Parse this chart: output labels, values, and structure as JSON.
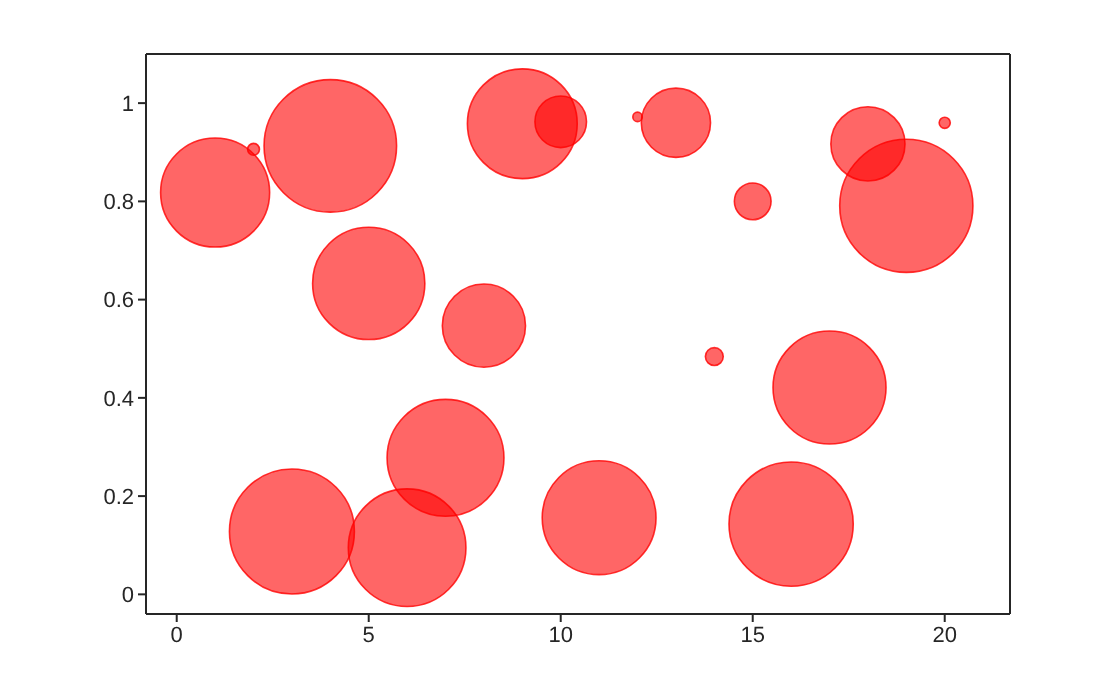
{
  "chart_data": {
    "type": "bubble",
    "x": [
      1,
      2,
      3,
      4,
      5,
      6,
      7,
      8,
      9,
      10,
      11,
      12,
      13,
      14,
      15,
      16,
      17,
      18,
      19,
      20
    ],
    "series": [
      {
        "color": "#ff0000",
        "values": [
          0.818,
          0.906,
          0.128,
          0.913,
          0.633,
          0.095,
          0.278,
          0.547,
          0.958,
          0.962,
          0.156,
          0.972,
          0.96,
          0.484,
          0.8,
          0.143,
          0.421,
          0.917,
          0.791,
          0.96
        ],
        "sizes": [
          0.67,
          0.008,
          0.88,
          0.99,
          0.71,
          0.78,
          0.77,
          0.39,
          0.68,
          0.15,
          0.73,
          0.005,
          0.27,
          0.018,
          0.076,
          0.87,
          0.72,
          0.31,
          1,
          0.007
        ]
      }
    ],
    "xlim": [
      -0.8,
      21.7
    ],
    "ylim": [
      -0.04,
      1.1
    ],
    "xticks": [
      0,
      5,
      10,
      15,
      20
    ],
    "yticks": [
      0,
      0.2,
      0.4,
      0.6,
      0.8,
      1
    ]
  }
}
